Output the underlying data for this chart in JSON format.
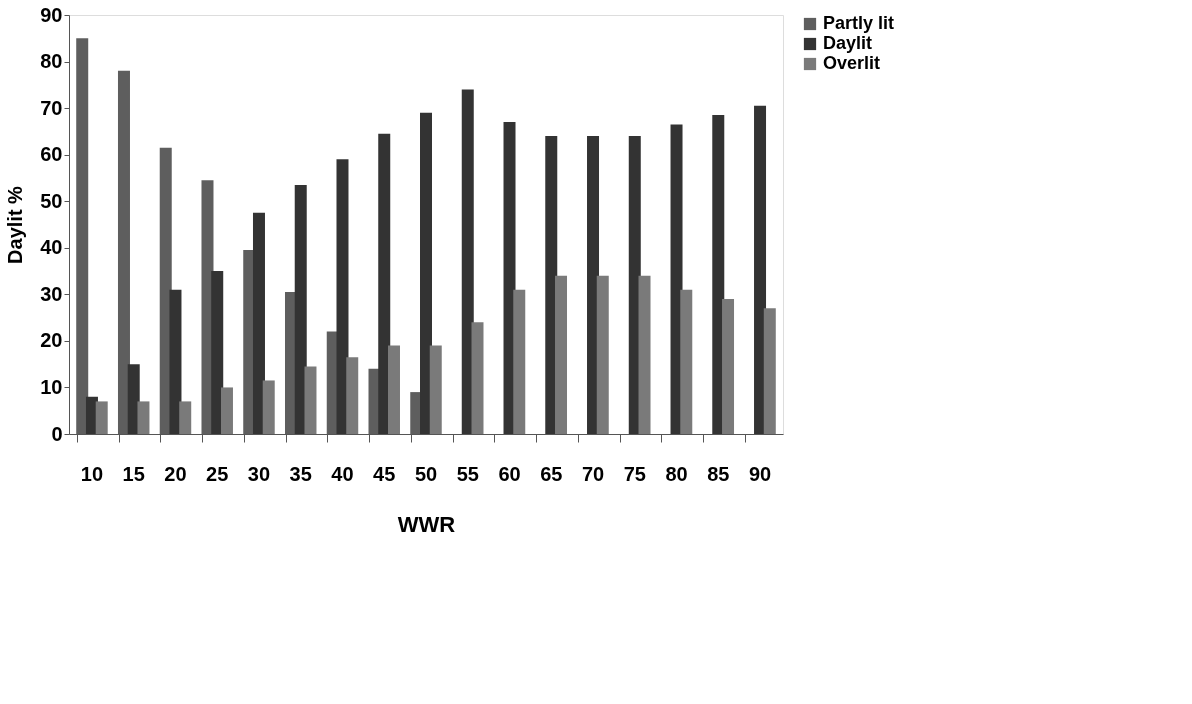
{
  "chart_data": {
    "type": "bar",
    "xlabel": "WWR",
    "ylabel": "Daylit %",
    "categories": [
      "10",
      "15",
      "20",
      "25",
      "30",
      "35",
      "40",
      "45",
      "50",
      "55",
      "60",
      "65",
      "70",
      "75",
      "80",
      "85",
      "90"
    ],
    "series": [
      {
        "name": "Partly lit",
        "color": "#5e5e5e",
        "values": [
          85,
          78,
          61.5,
          54.5,
          39.5,
          30.5,
          22,
          14,
          9,
          0,
          0,
          0,
          0,
          0,
          0,
          0,
          0
        ]
      },
      {
        "name": "Daylit",
        "color": "#333333",
        "values": [
          8,
          15,
          31,
          35,
          47.5,
          53.5,
          59,
          64.5,
          69,
          74,
          67,
          64,
          64,
          64,
          66.5,
          68.5,
          70.5
        ]
      },
      {
        "name": "Overlit",
        "color": "#7a7a7a",
        "values": [
          7,
          7,
          7,
          10,
          11.5,
          14.5,
          16.5,
          19,
          19,
          24,
          31,
          34,
          34,
          34,
          31,
          29,
          27
        ]
      }
    ],
    "ylim": [
      0,
      90
    ],
    "yticks": [
      0,
      10,
      20,
      30,
      40,
      50,
      60,
      70,
      80,
      90
    ],
    "grid": false,
    "legend": "right"
  }
}
